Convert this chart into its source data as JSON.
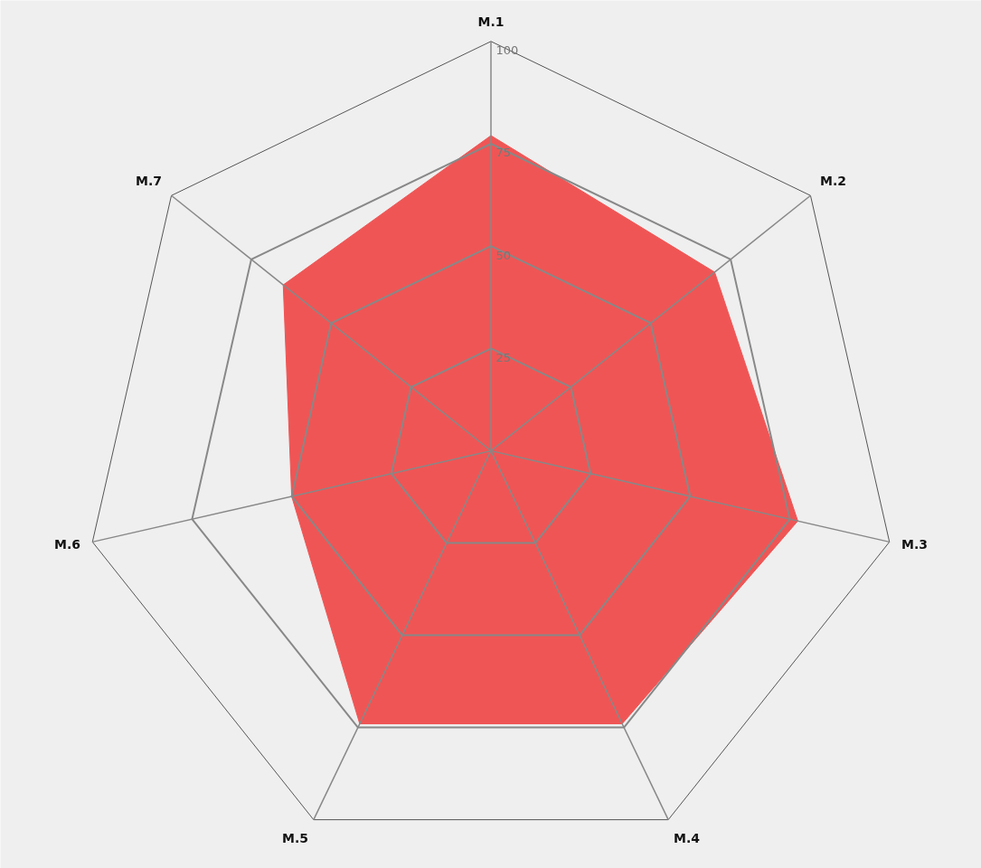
{
  "chart_data": {
    "type": "radar",
    "categories": [
      "M.1",
      "M.2",
      "M.3",
      "M.4",
      "M.5",
      "M.6",
      "M.7"
    ],
    "series": [
      {
        "color": "#f05555",
        "values": [
          77,
          70,
          77,
          74,
          74,
          50,
          65
        ]
      }
    ],
    "ylim": [
      0,
      100
    ],
    "yticks": [
      25,
      50,
      75,
      100
    ],
    "grid": true
  }
}
